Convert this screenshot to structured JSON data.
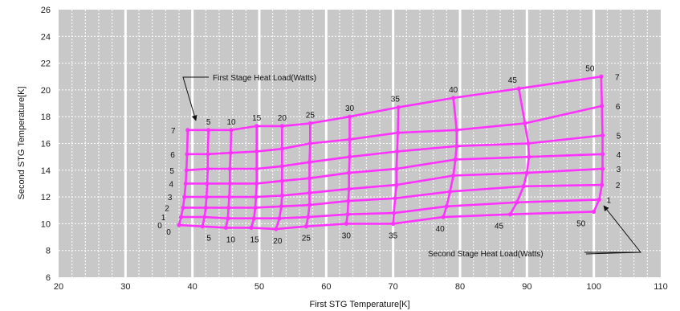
{
  "chart_data": {
    "type": "line",
    "title": "",
    "xlabel": "First  STG Temperature[K]",
    "ylabel": "Second STG Temperature[K]",
    "xlim": [
      20,
      110
    ],
    "ylim": [
      6,
      26
    ],
    "x_ticks": [
      "20",
      "30",
      "40",
      "50",
      "60",
      "70",
      "80",
      "90",
      "100",
      "110"
    ],
    "y_ticks": [
      "6",
      "8",
      "10",
      "12",
      "14",
      "16",
      "18",
      "20",
      "22",
      "24",
      "26"
    ],
    "grid": true,
    "first_stage_loads": [
      0,
      5,
      10,
      15,
      20,
      25,
      30,
      35,
      40,
      45,
      50
    ],
    "second_stage_loads": [
      0,
      1,
      2,
      3,
      4,
      5,
      6,
      7
    ],
    "points": [
      [
        [
          38.0,
          9.9
        ],
        [
          38.3,
          10.5
        ],
        [
          38.6,
          11.2
        ],
        [
          38.8,
          12.0
        ],
        [
          39.0,
          13.0
        ],
        [
          39.1,
          14.0
        ],
        [
          39.2,
          15.2
        ],
        [
          39.3,
          17.0
        ]
      ],
      [
        [
          41.5,
          9.8
        ],
        [
          41.8,
          10.5
        ],
        [
          42.0,
          11.2
        ],
        [
          42.1,
          12.0
        ],
        [
          42.2,
          13.0
        ],
        [
          42.3,
          14.1
        ],
        [
          42.3,
          15.2
        ],
        [
          42.4,
          17.0
        ]
      ],
      [
        [
          45.0,
          9.7
        ],
        [
          45.3,
          10.4
        ],
        [
          45.4,
          11.2
        ],
        [
          45.5,
          12.0
        ],
        [
          45.6,
          13.0
        ],
        [
          45.6,
          14.1
        ],
        [
          45.7,
          15.3
        ],
        [
          45.8,
          17.0
        ]
      ],
      [
        [
          48.8,
          9.7
        ],
        [
          49.2,
          10.4
        ],
        [
          49.4,
          11.2
        ],
        [
          49.5,
          12.0
        ],
        [
          49.6,
          13.0
        ],
        [
          49.6,
          14.1
        ],
        [
          49.6,
          15.4
        ],
        [
          49.6,
          17.3
        ]
      ],
      [
        [
          52.5,
          9.6
        ],
        [
          53.0,
          10.4
        ],
        [
          53.3,
          11.3
        ],
        [
          53.4,
          12.1
        ],
        [
          53.4,
          13.2
        ],
        [
          53.4,
          14.3
        ],
        [
          53.4,
          15.6
        ],
        [
          53.4,
          17.3
        ]
      ],
      [
        [
          57.0,
          9.8
        ],
        [
          57.3,
          10.5
        ],
        [
          57.5,
          11.4
        ],
        [
          57.5,
          12.3
        ],
        [
          57.5,
          13.4
        ],
        [
          57.5,
          14.6
        ],
        [
          57.6,
          16.0
        ],
        [
          57.6,
          17.5
        ]
      ],
      [
        [
          63.0,
          10.0
        ],
        [
          63.2,
          10.7
        ],
        [
          63.3,
          11.7
        ],
        [
          63.4,
          12.6
        ],
        [
          63.4,
          13.8
        ],
        [
          63.5,
          15.0
        ],
        [
          63.5,
          16.3
        ],
        [
          63.5,
          18.0
        ]
      ],
      [
        [
          70.0,
          10.0
        ],
        [
          70.1,
          10.8
        ],
        [
          70.3,
          11.9
        ],
        [
          70.5,
          12.9
        ],
        [
          70.5,
          14.1
        ],
        [
          70.6,
          15.4
        ],
        [
          70.7,
          16.8
        ],
        [
          70.8,
          18.7
        ]
      ],
      [
        [
          77.5,
          10.5
        ],
        [
          78.0,
          11.3
        ],
        [
          78.5,
          12.4
        ],
        [
          79.0,
          13.6
        ],
        [
          79.3,
          14.8
        ],
        [
          79.5,
          15.8
        ],
        [
          79.5,
          17.0
        ],
        [
          79.0,
          19.4
        ]
      ],
      [
        [
          87.5,
          10.7
        ],
        [
          88.5,
          11.6
        ],
        [
          89.5,
          12.8
        ],
        [
          90.0,
          13.8
        ],
        [
          90.3,
          15.0
        ],
        [
          90.2,
          16.0
        ],
        [
          89.7,
          17.5
        ],
        [
          88.8,
          20.1
        ]
      ],
      [
        [
          100.0,
          10.9
        ],
        [
          100.8,
          11.8
        ],
        [
          101.2,
          12.9
        ],
        [
          101.3,
          14.1
        ],
        [
          101.3,
          15.2
        ],
        [
          101.3,
          16.6
        ],
        [
          101.2,
          18.8
        ],
        [
          101.1,
          21.0
        ]
      ]
    ],
    "annotations": [
      "First Stage Heat Load(Watts)",
      "Second Stage Heat Load(Watts)"
    ],
    "colors": {
      "plot_bg": "#c8c8c8",
      "grid": "#ffffff",
      "line": "#ff33ff"
    }
  }
}
